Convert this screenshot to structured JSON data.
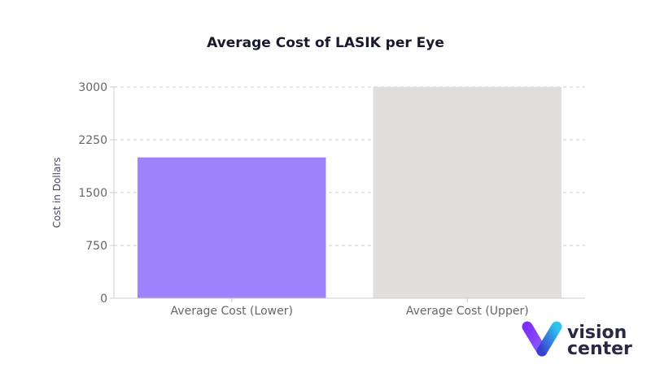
{
  "chart_data": {
    "type": "bar",
    "title": "Average Cost of LASIK per Eye",
    "xlabel": "",
    "ylabel": "Cost in Dollars",
    "categories": [
      "Average Cost (Lower)",
      "Average Cost (Upper)"
    ],
    "values": [
      2000,
      3000
    ],
    "colors": [
      "#9d84fe",
      "#e0dfde"
    ],
    "ylim": [
      0,
      3000
    ],
    "yticks": [
      0,
      750,
      1500,
      2250,
      3000
    ],
    "grid": true,
    "legend": "none"
  },
  "logo": {
    "line1": "vision",
    "line2": "center"
  }
}
